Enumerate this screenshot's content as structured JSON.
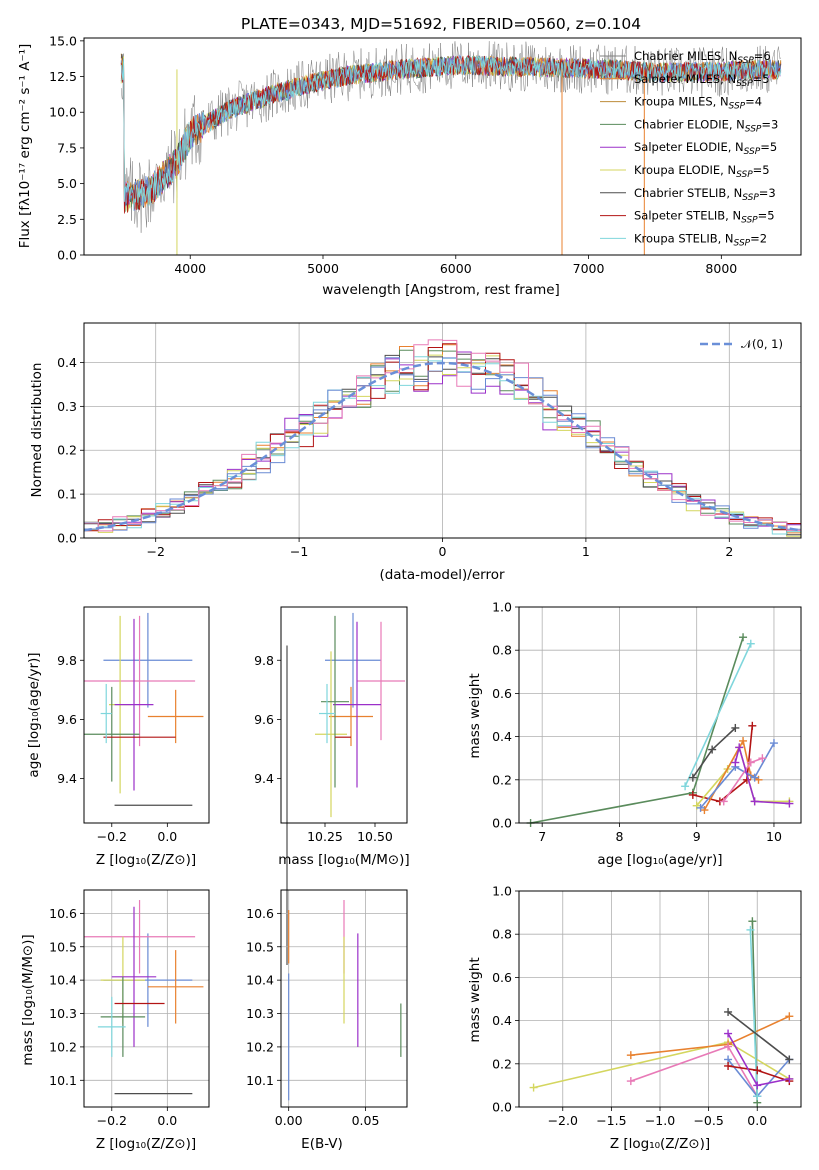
{
  "colors": {
    "grid": "#b0b0b0",
    "series": [
      "#808080",
      "#e8812f",
      "#bd8b3a",
      "#5a8b5c",
      "#9b30c9",
      "#d4d65f",
      "#4d4d4d",
      "#b21414",
      "#7fd6dc",
      "#6a8bd4",
      "#e87ab7"
    ],
    "normal": "#6a8fd8"
  },
  "spectrum": {
    "title": "PLATE=0343, MJD=51692, FIBERID=0560, z=0.104",
    "xlabel": "wavelength [Angstrom, rest frame]",
    "ylabel": "Flux [fλ10⁻¹⁷ erg cm⁻² s⁻¹ A⁻¹]",
    "xlim": [
      3200,
      8600
    ],
    "ylim": [
      0,
      15.2
    ],
    "xticks": [
      4000,
      5000,
      6000,
      7000,
      8000
    ],
    "yticks": [
      "0.0",
      "2.5",
      "5.0",
      "7.5",
      "10.0",
      "12.5",
      "15.0"
    ],
    "legend": [
      "Chabrier MILES, N_SSP=6",
      "Salpeter MILES, N_SSP=5",
      "Kroupa MILES, N_SSP=4",
      "Chabrier ELODIE, N_SSP=3",
      "Salpeter ELODIE, N_SSP=5",
      "Kroupa ELODIE, N_SSP=5",
      "Chabrier STELIB, N_SSP=3",
      "Salpeter STELIB, N_SSP=5",
      "Kroupa STELIB, N_SSP=2"
    ],
    "envelope": {
      "x": [
        3500,
        3700,
        3900,
        4000,
        4300,
        4600,
        4900,
        5200,
        5600,
        6000,
        6400,
        6800,
        7200,
        7500,
        7800,
        8100,
        8400
      ],
      "y": [
        4.0,
        4.5,
        6.5,
        8.5,
        10.2,
        11.2,
        12.0,
        12.6,
        13.0,
        13.3,
        13.2,
        13.1,
        13.0,
        12.8,
        12.8,
        12.9,
        13.0
      ]
    }
  },
  "histogram": {
    "xlabel": "(data-model)/error",
    "ylabel": "Normed distribution",
    "xlim": [
      -2.5,
      2.5
    ],
    "ylim": [
      0,
      0.49
    ],
    "xticks": [
      "−2",
      "−1",
      "0",
      "1",
      "2"
    ],
    "yticks": [
      "0.0",
      "0.1",
      "0.2",
      "0.3",
      "0.4"
    ],
    "legend_label": "𝒩(0, 1)"
  },
  "age_Z": {
    "xlabel": "Z [log₁₀(Z/Z⊙)]",
    "ylabel": "age  [log₁₀(age/yr)]",
    "xlim": [
      -0.3,
      0.15
    ],
    "ylim": [
      9.25,
      9.98
    ],
    "xticks": [
      "−0.2",
      "0.0"
    ],
    "yticks": [
      "9.4",
      "9.6",
      "9.8"
    ],
    "points": [
      {
        "x": -0.07,
        "y": 9.8,
        "ex": 0.16,
        "ey": 0.16
      },
      {
        "x": 0.03,
        "y": 9.61,
        "ex": 0.1,
        "ey": 0.09
      },
      {
        "x": -0.1,
        "y": 9.73,
        "ex": 0.2,
        "ey": 0.22
      },
      {
        "x": -0.17,
        "y": 9.65,
        "ex": 0.04,
        "ey": 0.3
      },
      {
        "x": -0.12,
        "y": 9.65,
        "ex": 0.07,
        "ey": 0.29
      },
      {
        "x": -0.2,
        "y": 9.55,
        "ex": 0.1,
        "ey": 0.16
      },
      {
        "x": -0.05,
        "y": 9.31,
        "ex": 0.14,
        "ey": 0.0
      },
      {
        "x": -0.1,
        "y": 9.54,
        "ex": 0.13,
        "ey": 0.0
      },
      {
        "x": -0.22,
        "y": 9.62,
        "ex": 0.02,
        "ey": 0.1
      }
    ]
  },
  "age_mass": {
    "xlabel": "mass [log₁₀(M/M⊙)]",
    "xlim": [
      10.03,
      10.66
    ],
    "ylim": [
      9.25,
      9.98
    ],
    "xticks": [
      "10.25",
      "10.50"
    ],
    "yticks": [
      "9.4",
      "9.6",
      "9.8"
    ],
    "points": [
      {
        "x": 10.39,
        "y": 9.8,
        "ex": 0.14,
        "ey": 0.16
      },
      {
        "x": 10.38,
        "y": 9.61,
        "ex": 0.11,
        "ey": 0.1
      },
      {
        "x": 10.53,
        "y": 9.73,
        "ex": 0.12,
        "ey": 0.2
      },
      {
        "x": 10.28,
        "y": 9.55,
        "ex": 0.08,
        "ey": 0.28
      },
      {
        "x": 10.41,
        "y": 9.65,
        "ex": 0.12,
        "ey": 0.28
      },
      {
        "x": 10.3,
        "y": 9.66,
        "ex": 0.07,
        "ey": 0.29
      },
      {
        "x": 10.06,
        "y": 9.31,
        "ex": 0.0,
        "ey": 0.54
      },
      {
        "x": 10.34,
        "y": 9.54,
        "ex": 0.04,
        "ey": 0.0
      },
      {
        "x": 10.26,
        "y": 9.62,
        "ex": 0.04,
        "ey": 0.1
      }
    ]
  },
  "weight_age": {
    "xlabel": "age  [log₁₀(age/yr)]",
    "ylabel": "mass weight",
    "xlim": [
      6.7,
      10.35
    ],
    "ylim": [
      0,
      1.0
    ],
    "xticks": [
      "7",
      "8",
      "9",
      "10"
    ],
    "yticks": [
      "0.0",
      "0.2",
      "0.4",
      "0.6",
      "0.8",
      "1.0"
    ],
    "series": [
      {
        "x": [
          6.85,
          8.95,
          9.6
        ],
        "y": [
          0.0,
          0.14,
          0.86
        ],
        "color_index": 3
      },
      {
        "x": [
          8.85,
          9.7
        ],
        "y": [
          0.17,
          0.83
        ],
        "color_index": 8
      },
      {
        "x": [
          8.95,
          9.2,
          9.5
        ],
        "y": [
          0.21,
          0.34,
          0.44
        ],
        "color_index": 6
      },
      {
        "x": [
          8.95,
          9.3,
          9.65,
          9.72
        ],
        "y": [
          0.13,
          0.1,
          0.2,
          0.45
        ],
        "color_index": 7
      },
      {
        "x": [
          9.0,
          9.4,
          9.55,
          9.75,
          10.2
        ],
        "y": [
          0.08,
          0.25,
          0.35,
          0.1,
          0.1
        ],
        "color_index": 5
      },
      {
        "x": [
          9.1,
          9.6,
          9.7,
          9.8
        ],
        "y": [
          0.06,
          0.38,
          0.22,
          0.2
        ],
        "color_index": 1
      },
      {
        "x": [
          9.05,
          9.5,
          9.75,
          10.0
        ],
        "y": [
          0.07,
          0.26,
          0.21,
          0.37
        ],
        "color_index": 9
      },
      {
        "x": [
          9.35,
          9.7,
          9.85
        ],
        "y": [
          0.1,
          0.28,
          0.3
        ],
        "color_index": 10
      },
      {
        "x": [
          9.5,
          9.55,
          9.75,
          10.2
        ],
        "y": [
          0.28,
          0.35,
          0.1,
          0.09
        ],
        "color_index": 4
      }
    ]
  },
  "mass_Z": {
    "xlabel": "Z [log₁₀(Z/Z⊙)]",
    "ylabel": "mass [log₁₀(M/M⊙)]",
    "xlim": [
      -0.3,
      0.15
    ],
    "ylim": [
      10.02,
      10.67
    ],
    "xticks": [
      "−0.2",
      "0.0"
    ],
    "yticks": [
      "10.1",
      "10.2",
      "10.3",
      "10.4",
      "10.5",
      "10.6"
    ],
    "points": [
      {
        "x": -0.07,
        "y": 10.4,
        "ex": 0.16,
        "ey": 0.14
      },
      {
        "x": 0.03,
        "y": 10.38,
        "ex": 0.1,
        "ey": 0.11
      },
      {
        "x": -0.1,
        "y": 10.53,
        "ex": 0.2,
        "ey": 0.11
      },
      {
        "x": -0.16,
        "y": 10.4,
        "ex": 0.08,
        "ey": 0.13
      },
      {
        "x": -0.12,
        "y": 10.41,
        "ex": 0.08,
        "ey": 0.21
      },
      {
        "x": -0.16,
        "y": 10.29,
        "ex": 0.08,
        "ey": 0.12
      },
      {
        "x": -0.05,
        "y": 10.06,
        "ex": 0.14,
        "ey": 0.0
      },
      {
        "x": -0.1,
        "y": 10.33,
        "ex": 0.09,
        "ey": 0.0
      },
      {
        "x": -0.2,
        "y": 10.26,
        "ex": 0.05,
        "ey": 0.09
      }
    ]
  },
  "mass_ebv": {
    "xlabel": "E(B-V)",
    "xlim": [
      -0.005,
      0.077
    ],
    "ylim": [
      10.02,
      10.67
    ],
    "xticks": [
      "0.00",
      "0.05"
    ],
    "yticks": [
      "10.1",
      "10.2",
      "10.3",
      "10.4",
      "10.5",
      "10.6"
    ],
    "points": [
      {
        "x": 0.0,
        "y": 10.23,
        "ex": 0.0,
        "ey": 0.19
      },
      {
        "x": 0.0,
        "y": 10.53,
        "ex": 0.0,
        "ey": 0.08
      },
      {
        "x": 0.036,
        "y": 10.53,
        "ex": 0.0,
        "ey": 0.11
      },
      {
        "x": 0.036,
        "y": 10.4,
        "ex": 0.0,
        "ey": 0.13
      },
      {
        "x": 0.045,
        "y": 10.37,
        "ex": 0.0,
        "ey": 0.17
      },
      {
        "x": 0.073,
        "y": 10.25,
        "ex": 0.0,
        "ey": 0.08
      }
    ]
  },
  "weight_Z": {
    "xlabel": "Z [log₁₀(Z/Z⊙)]",
    "ylabel": "mass weight",
    "xlim": [
      -2.45,
      0.45
    ],
    "ylim": [
      0,
      1.0
    ],
    "xticks": [
      "−2.0",
      "−1.5",
      "−1.0",
      "−0.5",
      "0.0"
    ],
    "yticks": [
      "0.0",
      "0.2",
      "0.4",
      "0.6",
      "0.8",
      "1.0"
    ],
    "series": [
      {
        "x": [
          -2.3,
          -0.3,
          0.33
        ],
        "y": [
          0.09,
          0.3,
          0.13
        ],
        "color_index": 5
      },
      {
        "x": [
          -1.3,
          -0.3,
          0.33
        ],
        "y": [
          0.24,
          0.29,
          0.42
        ],
        "color_index": 1
      },
      {
        "x": [
          -1.3,
          -0.3,
          0.0
        ],
        "y": [
          0.12,
          0.28,
          0.05
        ],
        "color_index": 10
      },
      {
        "x": [
          -0.3,
          0.0,
          0.33
        ],
        "y": [
          0.22,
          0.05,
          0.22
        ],
        "color_index": 9
      },
      {
        "x": [
          -0.05,
          0.0
        ],
        "y": [
          0.86,
          0.02
        ],
        "color_index": 3
      },
      {
        "x": [
          -0.07,
          0.0
        ],
        "y": [
          0.82,
          0.05
        ],
        "color_index": 8
      },
      {
        "x": [
          -0.3,
          0.33
        ],
        "y": [
          0.44,
          0.22
        ],
        "color_index": 6
      },
      {
        "x": [
          -0.3,
          0.0,
          0.33
        ],
        "y": [
          0.19,
          0.17,
          0.12
        ],
        "color_index": 7
      },
      {
        "x": [
          -0.3,
          0.0,
          0.33
        ],
        "y": [
          0.34,
          0.1,
          0.13
        ],
        "color_index": 4
      }
    ]
  },
  "chart_data": [
    {
      "type": "line",
      "title": "PLATE=0343, MJD=51692, FIBERID=0560, z=0.104",
      "xlabel": "wavelength [Angstrom, rest frame]",
      "ylabel": "Flux [fλ10⁻¹⁷ erg cm⁻² s⁻¹ A⁻¹]",
      "xlim": [
        3200,
        8600
      ],
      "ylim": [
        0,
        15.2
      ],
      "series": [
        {
          "name": "Chabrier MILES, N_SSP=6"
        },
        {
          "name": "Salpeter MILES, N_SSP=5"
        },
        {
          "name": "Kroupa MILES, N_SSP=4"
        },
        {
          "name": "Chabrier ELODIE, N_SSP=3"
        },
        {
          "name": "Salpeter ELODIE, N_SSP=5"
        },
        {
          "name": "Kroupa ELODIE, N_SSP=5"
        },
        {
          "name": "Chabrier STELIB, N_SSP=3"
        },
        {
          "name": "Salpeter STELIB, N_SSP=5"
        },
        {
          "name": "Kroupa STELIB, N_SSP=2"
        }
      ]
    },
    {
      "type": "line",
      "xlabel": "(data-model)/error",
      "ylabel": "Normed distribution",
      "xlim": [
        -2.5,
        2.5
      ],
      "ylim": [
        0,
        0.49
      ],
      "legend": "𝒩(0, 1)",
      "grid": true
    },
    {
      "type": "scatter",
      "xlabel": "Z [log₁₀(Z/Z⊙)]",
      "ylabel": "age  [log₁₀(age/yr)]"
    },
    {
      "type": "scatter",
      "xlabel": "mass [log₁₀(M/M⊙)]"
    },
    {
      "type": "line",
      "xlabel": "age  [log₁₀(age/yr)]",
      "ylabel": "mass weight",
      "ylim": [
        0,
        1.0
      ],
      "grid": true
    },
    {
      "type": "scatter",
      "xlabel": "Z [log₁₀(Z/Z⊙)]",
      "ylabel": "mass [log₁₀(M/M⊙)]",
      "grid": true
    },
    {
      "type": "scatter",
      "xlabel": "E(B-V)",
      "grid": true
    },
    {
      "type": "line",
      "xlabel": "Z [log₁₀(Z/Z⊙)]",
      "ylabel": "mass weight",
      "ylim": [
        0,
        1.0
      ],
      "grid": true
    }
  ]
}
